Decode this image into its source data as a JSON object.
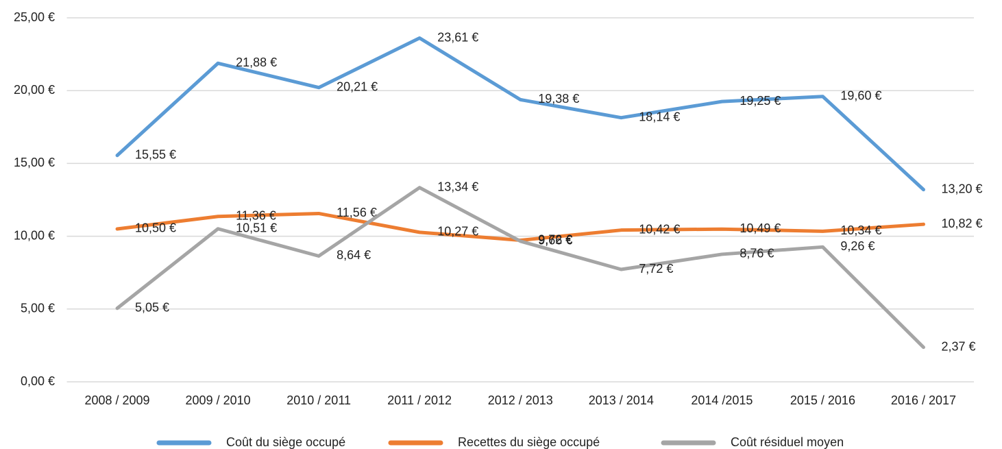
{
  "chart_data": {
    "type": "line",
    "categories": [
      "2008 / 2009",
      "2009 / 2010",
      "2010 / 2011",
      "2011 / 2012",
      "2012 / 2013",
      "2013 / 2014",
      "2014 /2015",
      "2015 / 2016",
      "2016 / 2017"
    ],
    "series": [
      {
        "name": "Coût du siège occupé",
        "color": "#5b9bd5",
        "values": [
          15.55,
          21.88,
          20.21,
          23.61,
          19.38,
          18.14,
          19.25,
          19.6,
          13.2
        ],
        "value_labels": [
          "15,55 €",
          "21,88 €",
          "20,21 €",
          "23,61 €",
          "19,38 €",
          "18,14 €",
          "19,25 €",
          "19,60 €",
          "13,20 €"
        ]
      },
      {
        "name": "Recettes du siège occupé",
        "color": "#ed7d31",
        "values": [
          10.5,
          11.36,
          11.56,
          10.27,
          9.72,
          10.42,
          10.49,
          10.34,
          10.82
        ],
        "value_labels": [
          "10,50 €",
          "11,36 €",
          "11,56 €",
          "10,27 €",
          "9,72 €",
          "10,42 €",
          "10,49 €",
          "10,34 €",
          "10,82 €"
        ]
      },
      {
        "name": "Coût résiduel moyen",
        "color": "#a5a5a5",
        "values": [
          5.05,
          10.51,
          8.64,
          13.34,
          9.66,
          7.72,
          8.76,
          9.26,
          2.37
        ],
        "value_labels": [
          "5,05 €",
          "10,51 €",
          "8,64 €",
          "13,34 €",
          "9,66 €",
          "7,72 €",
          "8,76 €",
          "9,26 €",
          "2,37 €"
        ]
      }
    ],
    "ylim": [
      0,
      25
    ],
    "yticks": [
      {
        "value": 0,
        "label": "0,00 €"
      },
      {
        "value": 5,
        "label": "5,00 €"
      },
      {
        "value": 10,
        "label": "10,00 €"
      },
      {
        "value": 15,
        "label": "15,00 €"
      },
      {
        "value": 20,
        "label": "20,00 €"
      },
      {
        "value": 25,
        "label": "25,00 €"
      }
    ],
    "grid": true,
    "legend": "bottom"
  }
}
